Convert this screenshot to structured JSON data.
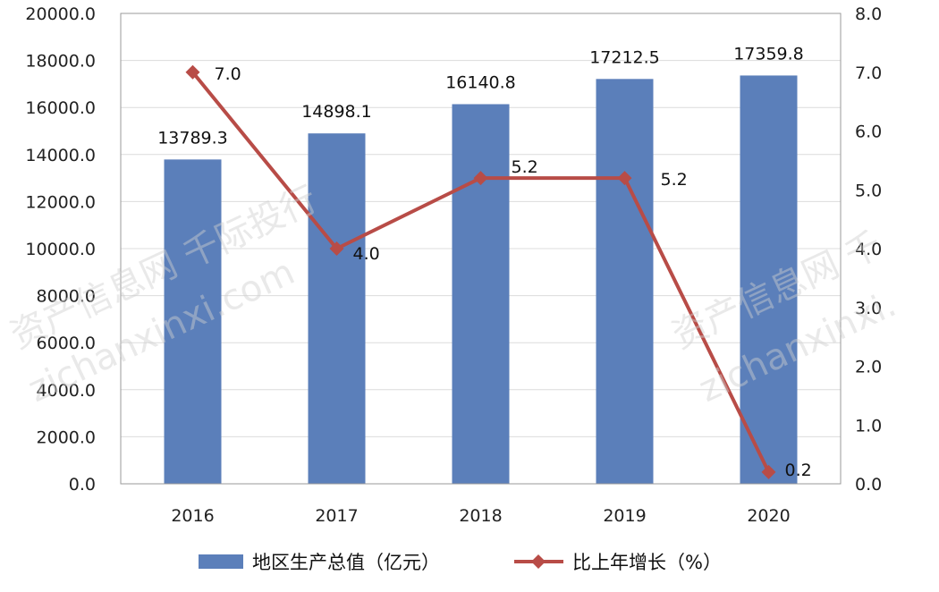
{
  "chart_data": {
    "type": "bar+line",
    "categories": [
      "2016",
      "2017",
      "2018",
      "2019",
      "2020"
    ],
    "series": [
      {
        "name": "地区生产总值（亿元）",
        "kind": "bar",
        "axis": "left",
        "color": "#5b7fba",
        "values": [
          13789.3,
          14898.1,
          16140.8,
          17212.5,
          17359.8
        ],
        "labels": [
          "13789.3",
          "14898.1",
          "16140.8",
          "17212.5",
          "17359.8"
        ]
      },
      {
        "name": "比上年增长（%）",
        "kind": "line",
        "axis": "right",
        "color": "#b84c47",
        "values": [
          7.0,
          4.0,
          5.2,
          5.2,
          0.2
        ],
        "labels": [
          "7.0",
          "4.0",
          "5.2",
          "5.2",
          "0.2"
        ]
      }
    ],
    "y_left": {
      "ylim": [
        0,
        20000
      ],
      "ticks": [
        "0.0",
        "2000.0",
        "4000.0",
        "6000.0",
        "8000.0",
        "10000.0",
        "12000.0",
        "14000.0",
        "16000.0",
        "18000.0",
        "20000.0"
      ]
    },
    "y_right": {
      "ylim": [
        0,
        8
      ],
      "ticks": [
        "0.0",
        "1.0",
        "2.0",
        "3.0",
        "4.0",
        "5.0",
        "6.0",
        "7.0",
        "8.0"
      ]
    },
    "grid": true,
    "legend_position": "bottom"
  },
  "watermark": {
    "text_cn_left": "资产信息网 千际投行",
    "text_en_left": "zichanxinxi.com",
    "text_cn_right": "资产信息网 千",
    "text_en_right": "zichanxinxi."
  }
}
